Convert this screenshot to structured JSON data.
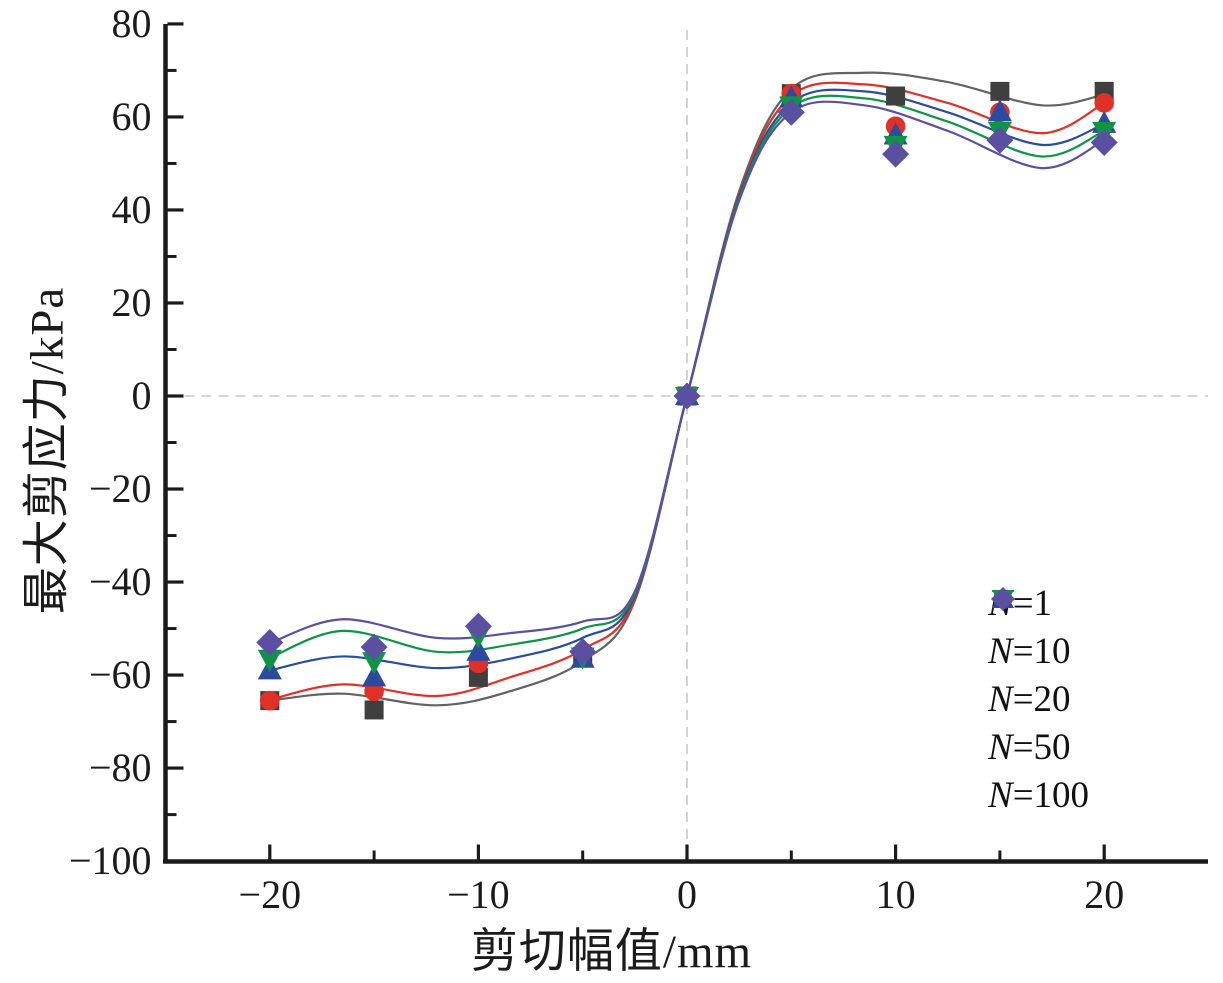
{
  "figure": {
    "background": "#ffffff",
    "axis_color": "#1b1b1b",
    "zero_line_color": "#c8c8c8"
  },
  "chart_data": {
    "type": "scatter",
    "title": "",
    "xlabel": "剪切幅值/mm",
    "ylabel": "最大剪应力/kPa",
    "xlim": [
      -25,
      25
    ],
    "ylim": [
      -100,
      80
    ],
    "grid": "zero-lines-dashed-only",
    "legend_position": "lower right",
    "x_major_ticks": [
      -20,
      -10,
      0,
      10,
      20
    ],
    "x_major_tick_labels": [
      "−20",
      "−10",
      "0",
      "10",
      "20"
    ],
    "x_minor_ticks": [
      -15,
      -5,
      5,
      15
    ],
    "y_major_ticks": [
      80,
      60,
      40,
      20,
      0,
      -20,
      -40,
      -60,
      -80,
      -100
    ],
    "y_major_tick_labels": [
      "80",
      "60",
      "40",
      "20",
      "0",
      "−20",
      "−40",
      "−60",
      "−80",
      "−100"
    ],
    "y_minor_ticks": [
      70,
      50,
      30,
      10,
      -10,
      -30,
      -50,
      -70,
      -90
    ],
    "x": [
      -20,
      -15,
      -10,
      -5,
      0,
      5,
      10,
      15,
      20
    ],
    "series": [
      {
        "name": "N=1",
        "marker": "square",
        "color": "#3f3f3f",
        "line_color": "#636363",
        "values": [
          -65.5,
          -67.5,
          -60.5,
          -56,
          0,
          65,
          64.5,
          65.5,
          65.5
        ],
        "fit": [
          [
            -20,
            -65.5
          ],
          [
            -16.5,
            -64
          ],
          [
            -12,
            -66.5
          ],
          [
            -8.5,
            -63.5
          ],
          [
            -5,
            -57
          ],
          [
            -2.5,
            -44
          ],
          [
            0,
            0
          ],
          [
            2.5,
            44
          ],
          [
            5,
            66
          ],
          [
            8.5,
            69.5
          ],
          [
            12.5,
            67.5
          ],
          [
            17,
            62.5
          ],
          [
            20,
            64.8
          ]
        ]
      },
      {
        "name": "N=10",
        "marker": "circle",
        "color": "#e13028",
        "line_color": "#e13028",
        "values": [
          -65.5,
          -63.5,
          -57.5,
          -55,
          0,
          65,
          58,
          61,
          63
        ],
        "fit": [
          [
            -20,
            -65.3
          ],
          [
            -16.5,
            -62
          ],
          [
            -12,
            -64.5
          ],
          [
            -8.5,
            -60.5
          ],
          [
            -5,
            -54.5
          ],
          [
            -2.5,
            -43.5
          ],
          [
            0,
            0
          ],
          [
            2.5,
            43.5
          ],
          [
            5,
            64.5
          ],
          [
            8.5,
            67
          ],
          [
            12.5,
            63
          ],
          [
            17,
            56.5
          ],
          [
            20,
            63
          ]
        ]
      },
      {
        "name": "N=20",
        "marker": "triangle-up",
        "color": "#2b4c9e",
        "line_color": "#2b4c9e",
        "values": [
          -59,
          -60.5,
          -55,
          -56.5,
          0,
          64,
          56,
          61,
          58.5
        ],
        "fit": [
          [
            -20,
            -59
          ],
          [
            -16.5,
            -56
          ],
          [
            -12,
            -58.5
          ],
          [
            -8.5,
            -56.5
          ],
          [
            -5,
            -52
          ],
          [
            -2.5,
            -43
          ],
          [
            0,
            0
          ],
          [
            2.5,
            43
          ],
          [
            5,
            63
          ],
          [
            8.5,
            65.5
          ],
          [
            12.5,
            61
          ],
          [
            17,
            54
          ],
          [
            20,
            58.5
          ]
        ]
      },
      {
        "name": "N=50",
        "marker": "triangle-down",
        "color": "#0f9447",
        "line_color": "#0f9447",
        "values": [
          -56.5,
          -57,
          -51.5,
          -56,
          0,
          62.5,
          54,
          57,
          57
        ],
        "fit": [
          [
            -20,
            -56.3
          ],
          [
            -16.5,
            -50.5
          ],
          [
            -12,
            -55
          ],
          [
            -8.5,
            -53.5
          ],
          [
            -5,
            -50
          ],
          [
            -2.5,
            -42.5
          ],
          [
            0,
            0
          ],
          [
            2.5,
            42.5
          ],
          [
            5,
            62
          ],
          [
            8.5,
            64
          ],
          [
            12.5,
            59
          ],
          [
            17,
            51.5
          ],
          [
            20,
            57
          ]
        ]
      },
      {
        "name": "N=100",
        "marker": "diamond",
        "color": "#5b4fa2",
        "line_color": "#5b4fa2",
        "values": [
          -53,
          -54,
          -49.5,
          -55,
          0,
          61,
          52,
          55,
          54.5
        ],
        "fit": [
          [
            -20,
            -53.1
          ],
          [
            -16.5,
            -48
          ],
          [
            -12,
            -52
          ],
          [
            -8.5,
            -51
          ],
          [
            -5,
            -48.5
          ],
          [
            -2.5,
            -42
          ],
          [
            0,
            0
          ],
          [
            2.5,
            42
          ],
          [
            5,
            61
          ],
          [
            8.5,
            62.5
          ],
          [
            12.5,
            57
          ],
          [
            17,
            49
          ],
          [
            20,
            55
          ]
        ]
      }
    ]
  }
}
